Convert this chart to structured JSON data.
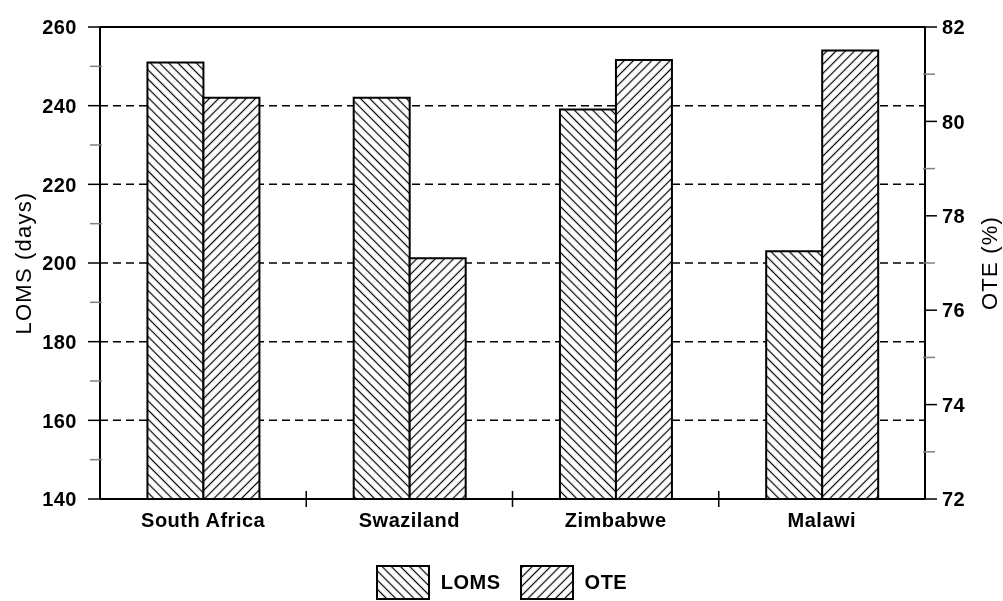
{
  "chart_data": {
    "type": "bar",
    "categories": [
      "South Africa",
      "Swaziland",
      "Zimbabwe",
      "Malawi"
    ],
    "series": [
      {
        "name": "LOMS",
        "color": "#000000",
        "values": [
          251,
          242,
          239,
          203
        ]
      },
      {
        "name": "OTE",
        "color": "#000000",
        "axis": "y2",
        "values": [
          80.5,
          77.1,
          81.3,
          81.5
        ]
      }
    ],
    "ylabel": "LOMS (days)",
    "y2label": "OTE (%)",
    "ylim": [
      140,
      260
    ],
    "yticks": [
      140,
      {
        "value": 150,
        "label": null
      },
      160,
      {
        "value": 170,
        "label": null
      },
      180,
      {
        "value": 190,
        "label": null
      },
      200,
      {
        "value": 210,
        "label": null
      },
      220,
      {
        "value": 230,
        "label": null
      },
      240,
      {
        "value": 250,
        "label": null
      },
      260
    ],
    "y2lim": [
      72,
      82
    ],
    "y2ticks": [
      72,
      {
        "value": 73,
        "label": null
      },
      74,
      {
        "value": 75,
        "label": null
      },
      76,
      {
        "value": 77,
        "label": null
      },
      78,
      {
        "value": 79,
        "label": null
      },
      80,
      {
        "value": 81,
        "label": null
      },
      82
    ],
    "grid": "y",
    "legend": "bottom"
  }
}
